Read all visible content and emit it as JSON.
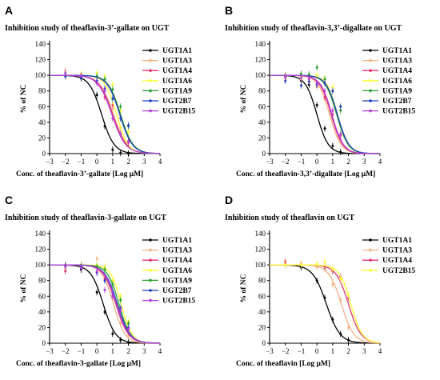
{
  "chart_data": [
    {
      "panel": "A",
      "type": "line",
      "title": "Inhibition study of theaflavin-3’-gallate  on UGT",
      "xlabel": "Conc. of theaflavin-3’-gallate  [Log μM]",
      "ylabel": "% of NC",
      "xlim": [
        -3,
        4
      ],
      "ylim": [
        0,
        140
      ],
      "xticks": [
        "−3",
        "−2",
        "−1",
        "0",
        "1",
        "2",
        "3",
        "4"
      ],
      "yticks": [
        "0",
        "20",
        "40",
        "60",
        "80",
        "100",
        "120",
        "140"
      ],
      "legend_position": "top-right",
      "grid": false,
      "series": [
        {
          "name": "UGT1A1",
          "color": "#000000",
          "logIC50": 0.3,
          "hill": 1.1,
          "x": [
            -2,
            -1,
            0,
            0.5,
            1,
            1.5,
            2
          ],
          "y": [
            99,
            96,
            75,
            35,
            5,
            1,
            0
          ]
        },
        {
          "name": "UGT1A3",
          "color": "#f4b183",
          "logIC50": 1.05,
          "hill": 1.0,
          "x": [
            -2,
            -1,
            0,
            0.5,
            1,
            1.5,
            2
          ],
          "y": [
            106,
            98,
            90,
            76,
            57,
            33,
            13
          ]
        },
        {
          "name": "UGT1A4",
          "color": "#e8336f",
          "logIC50": 1.0,
          "hill": 1.0,
          "x": [
            -2,
            -1,
            0,
            0.5,
            1,
            1.5,
            2
          ],
          "y": [
            100,
            99,
            92,
            72,
            62,
            25,
            16
          ]
        },
        {
          "name": "UGT1A6",
          "color": "#ffff33",
          "logIC50": 1.25,
          "hill": 1.2,
          "x": [
            -2,
            -1,
            0,
            0.5,
            1,
            1.5,
            2
          ],
          "y": [
            100,
            102,
            103,
            99,
            88,
            55,
            28
          ]
        },
        {
          "name": "UGT1A9",
          "color": "#2ca02c",
          "logIC50": 1.5,
          "hill": 1.1,
          "x": [
            -2,
            -1,
            0,
            0.5,
            1,
            1.5,
            2
          ],
          "y": [
            100,
            100,
            99,
            95,
            82,
            60,
            35
          ]
        },
        {
          "name": "UGT2B7",
          "color": "#1f3fbf",
          "logIC50": 1.45,
          "hill": 1.1,
          "x": [
            -2,
            -1,
            0,
            0.5,
            1,
            1.5,
            2
          ],
          "y": [
            99,
            97,
            93,
            83,
            70,
            45,
            36
          ]
        },
        {
          "name": "UGT2B15",
          "color": "#b23fd9",
          "logIC50": 0.95,
          "hill": 1.0,
          "x": [
            -2,
            -1,
            0,
            0.5,
            1,
            1.5,
            2
          ],
          "y": [
            103,
            100,
            90,
            80,
            45,
            25,
            14
          ]
        }
      ]
    },
    {
      "panel": "B",
      "type": "line",
      "title": "Inhibition study of theaflavin-3,3’-digallate  on UGT",
      "xlabel": "Conc. of theaflavin-3,3’-digallate  [Log μM]",
      "ylabel": "% of NC",
      "xlim": [
        -3,
        4
      ],
      "ylim": [
        0,
        140
      ],
      "xticks": [
        "−3",
        "−2",
        "−1",
        "0",
        "1",
        "2",
        "3",
        "4"
      ],
      "yticks": [
        "0",
        "20",
        "40",
        "60",
        "80",
        "100",
        "120",
        "140"
      ],
      "legend_position": "top-right",
      "grid": false,
      "series": [
        {
          "name": "UGT1A1",
          "color": "#000000",
          "logIC50": 0.0,
          "hill": 1.2,
          "x": [
            -2,
            -1,
            -0.5,
            0,
            0.5,
            1,
            1.5
          ],
          "y": [
            98,
            93,
            88,
            62,
            32,
            10,
            2
          ]
        },
        {
          "name": "UGT1A3",
          "color": "#f4b183",
          "logIC50": 0.8,
          "hill": 1.2,
          "x": [
            -2,
            -1,
            -0.5,
            0,
            0.5,
            1,
            1.5
          ],
          "y": [
            98,
            95,
            92,
            85,
            70,
            45,
            18
          ]
        },
        {
          "name": "UGT1A4",
          "color": "#e8336f",
          "logIC50": 0.9,
          "hill": 1.2,
          "x": [
            -2,
            -1,
            -0.5,
            0,
            0.5,
            1,
            1.5
          ],
          "y": [
            97,
            99,
            96,
            88,
            72,
            50,
            23
          ]
        },
        {
          "name": "UGT1A6",
          "color": "#ffff33",
          "logIC50": 1.3,
          "hill": 1.3,
          "x": [
            -2,
            -1,
            -0.5,
            0,
            0.5,
            1,
            1.5
          ],
          "y": [
            100,
            98,
            99,
            100,
            96,
            85,
            60
          ]
        },
        {
          "name": "UGT1A9",
          "color": "#2ca02c",
          "logIC50": 1.25,
          "hill": 1.2,
          "x": [
            -2,
            -1,
            -0.5,
            0,
            0.5,
            1,
            1.5
          ],
          "y": [
            100,
            102,
            101,
            110,
            95,
            80,
            55
          ]
        },
        {
          "name": "UGT2B7",
          "color": "#1f3fbf",
          "logIC50": 1.3,
          "hill": 1.2,
          "x": [
            -2,
            -1,
            -0.5,
            0,
            0.5,
            1,
            1.5
          ],
          "y": [
            93,
            87,
            92,
            88,
            90,
            80,
            60
          ]
        },
        {
          "name": "UGT2B15",
          "color": "#b23fd9",
          "logIC50": 0.95,
          "hill": 1.2,
          "x": [
            -2,
            -1,
            -0.5,
            0,
            0.5,
            1,
            1.5
          ],
          "y": [
            99,
            97,
            95,
            90,
            80,
            55,
            25
          ]
        }
      ]
    },
    {
      "panel": "C",
      "type": "line",
      "title": "Inhibition study of theaflavin-3-gallate  on UGT",
      "xlabel": "Conc. of theaflavin-3-gallate [Log μM]",
      "ylabel": "% of NC",
      "xlim": [
        -3,
        4
      ],
      "ylim": [
        0,
        140
      ],
      "xticks": [
        "−3",
        "−2",
        "−1",
        "0",
        "1",
        "2",
        "3",
        "4"
      ],
      "yticks": [
        "0",
        "20",
        "40",
        "60",
        "80",
        "100",
        "120",
        "140"
      ],
      "legend_position": "top-right",
      "grid": false,
      "series": [
        {
          "name": "UGT1A1",
          "color": "#000000",
          "logIC50": 0.4,
          "hill": 1.1,
          "x": [
            -2,
            -1,
            0,
            0.5,
            1,
            1.5,
            2
          ],
          "y": [
            99,
            94,
            65,
            40,
            12,
            4,
            1
          ]
        },
        {
          "name": "UGT1A3",
          "color": "#f4b183",
          "logIC50": 1.05,
          "hill": 1.2,
          "x": [
            -2,
            -1,
            0,
            0.5,
            1,
            1.5,
            2
          ],
          "y": [
            95,
            100,
            108,
            95,
            60,
            25,
            10
          ]
        },
        {
          "name": "UGT1A4",
          "color": "#e8336f",
          "logIC50": 1.2,
          "hill": 1.1,
          "x": [
            -2,
            -1,
            0,
            0.5,
            1,
            1.5,
            2
          ],
          "y": [
            92,
            98,
            90,
            82,
            60,
            40,
            20
          ]
        },
        {
          "name": "UGT1A6",
          "color": "#ffff33",
          "logIC50": 1.55,
          "hill": 1.3,
          "x": [
            -2,
            -1,
            0,
            0.5,
            1,
            1.5,
            2
          ],
          "y": [
            100,
            99,
            100,
            98,
            80,
            60,
            28
          ]
        },
        {
          "name": "UGT1A9",
          "color": "#2ca02c",
          "logIC50": 1.4,
          "hill": 1.2,
          "x": [
            -2,
            -1,
            0,
            0.5,
            1,
            1.5,
            2
          ],
          "y": [
            100,
            99,
            98,
            94,
            75,
            55,
            25
          ]
        },
        {
          "name": "UGT2B7",
          "color": "#1f3fbf",
          "logIC50": 1.3,
          "hill": 1.1,
          "x": [
            -2,
            -1,
            0,
            0.5,
            1,
            1.5,
            2
          ],
          "y": [
            99,
            97,
            90,
            80,
            64,
            45,
            20
          ]
        },
        {
          "name": "UGT2B15",
          "color": "#b23fd9",
          "logIC50": 1.25,
          "hill": 1.1,
          "x": [
            -2,
            -1,
            0,
            0.5,
            1,
            1.5,
            2
          ],
          "y": [
            98,
            96,
            92,
            68,
            60,
            42,
            18
          ]
        }
      ]
    },
    {
      "panel": "D",
      "type": "line",
      "title": "Inhibition study of theaflavin on UGT",
      "xlabel": "Conc. of theaflavin  [Log μM]",
      "ylabel": "% of NC",
      "xlim": [
        -3,
        4
      ],
      "ylim": [
        0,
        140
      ],
      "xticks": [
        "−3",
        "−2",
        "−1",
        "0",
        "1",
        "2",
        "3",
        "4"
      ],
      "yticks": [
        "0",
        "20",
        "40",
        "60",
        "80",
        "100",
        "120",
        "140"
      ],
      "legend_position": "top-right",
      "grid": false,
      "series": [
        {
          "name": "UGT1A1",
          "color": "#000000",
          "logIC50": 0.6,
          "hill": 1.0,
          "x": [
            -2,
            -1,
            0,
            0.5,
            1,
            1.5,
            2
          ],
          "y": [
            100,
            97,
            80,
            58,
            30,
            12,
            4
          ]
        },
        {
          "name": "UGT1A3",
          "color": "#f4b183",
          "logIC50": 1.55,
          "hill": 1.1,
          "x": [
            -2,
            -1,
            0,
            0.5,
            1,
            1.5,
            2
          ],
          "y": [
            105,
            102,
            98,
            95,
            75,
            55,
            20
          ]
        },
        {
          "name": "UGT1A4",
          "color": "#e8336f",
          "logIC50": 2.0,
          "hill": 1.1,
          "x": [
            -2,
            -1,
            0,
            0.5,
            1,
            1.5,
            2
          ],
          "y": [
            103,
            100,
            100,
            98,
            92,
            85,
            58
          ]
        },
        {
          "name": "UGT2B15",
          "color": "#ffff33",
          "logIC50": 2.15,
          "hill": 1.2,
          "x": [
            -2,
            -1,
            0,
            0.5,
            1,
            1.5,
            2
          ],
          "y": [
            100,
            100,
            101,
            104,
            95,
            82,
            62
          ]
        }
      ]
    }
  ]
}
